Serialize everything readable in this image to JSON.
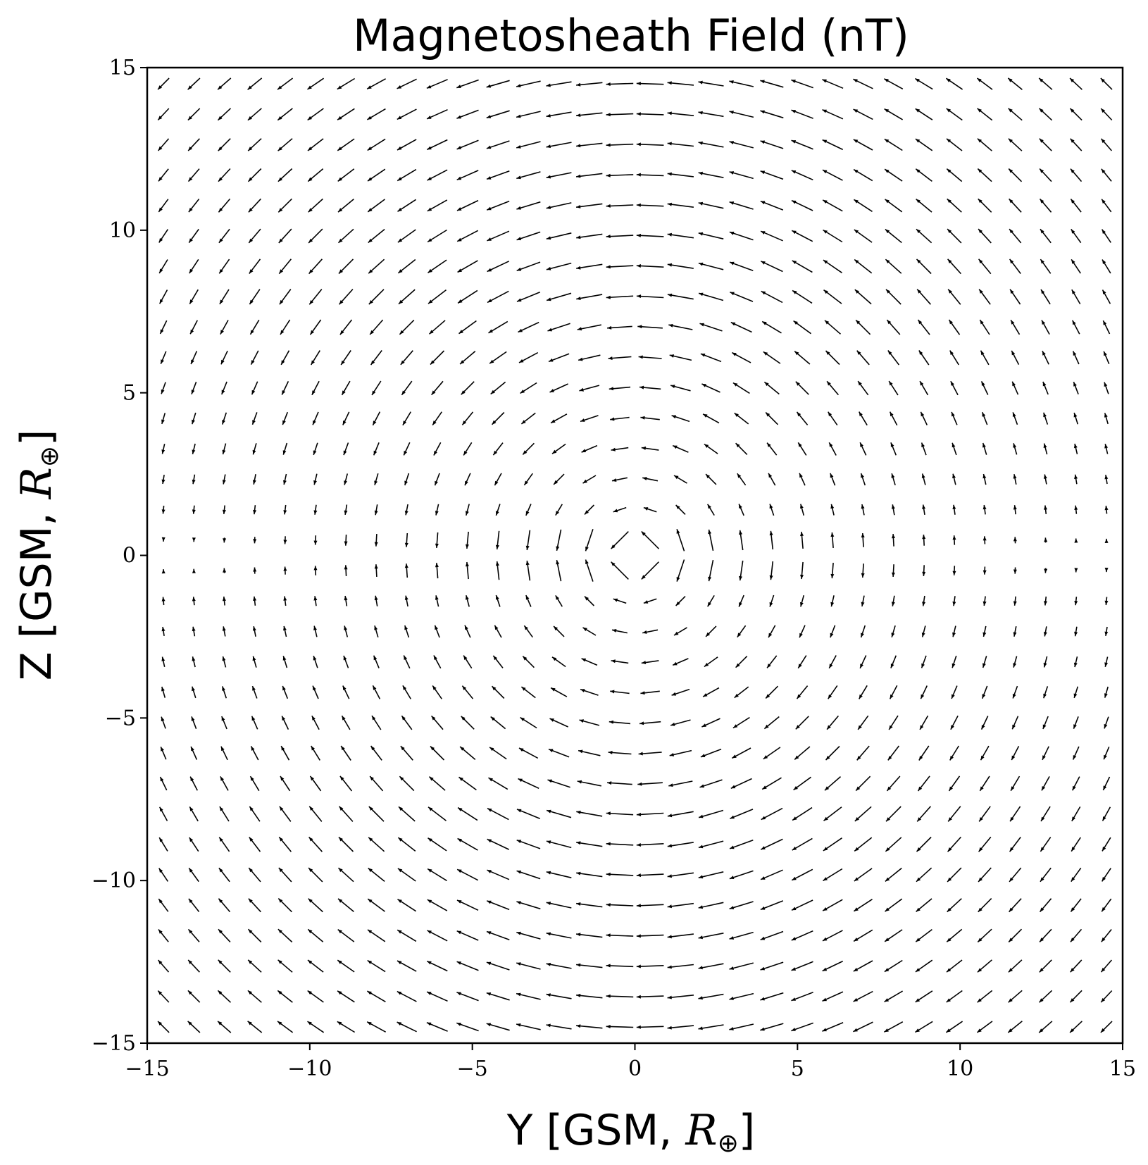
{
  "chart_data": {
    "type": "quiver",
    "title": "Magnetosheath Field (nT)",
    "xlabel": {
      "text": "Y [GSM, ",
      "math": "R",
      "sub": "⊕",
      "close": "]"
    },
    "ylabel": {
      "text": "Z [GSM, ",
      "math": "R",
      "sub": "⊕",
      "close": "]"
    },
    "xlim": [
      -15,
      15
    ],
    "ylim": [
      -15,
      15
    ],
    "xticks": [
      -15,
      -10,
      -5,
      0,
      5,
      10,
      15
    ],
    "yticks": [
      -15,
      -10,
      -5,
      0,
      5,
      10,
      15
    ],
    "xtick_labels": [
      "−15",
      "−10",
      "−5",
      "0",
      "5",
      "10",
      "15"
    ],
    "ytick_labels": [
      "−15",
      "−10",
      "−5",
      "0",
      "5",
      "10",
      "15"
    ],
    "grid": false,
    "legend": "none",
    "field": {
      "grid_y": {
        "start": -14.5,
        "stop": 14.5,
        "step": 0.9355,
        "count": 32
      },
      "grid_z": {
        "start": -14.5,
        "stop": 14.5,
        "step": 0.9355,
        "count": 32
      },
      "description_model": "magnetosheath draped IMF, vectors oriented tangentially around origin, pointing toward -Y",
      "reference_magnitude_nT": 1.0
    }
  },
  "colors": {
    "background": "#ffffff",
    "ink": "#000000"
  }
}
